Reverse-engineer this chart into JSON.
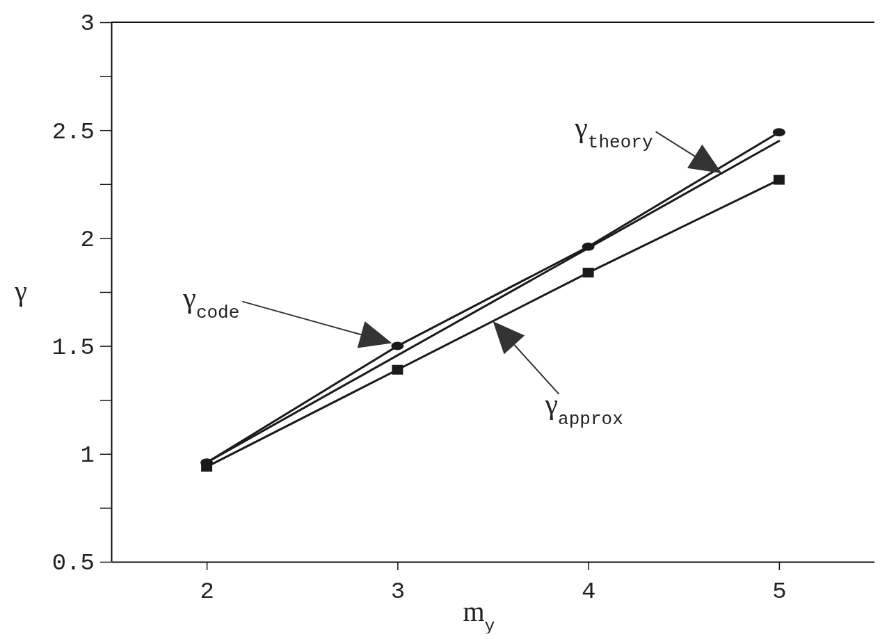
{
  "chart_data": {
    "type": "line",
    "xlabel": "m$_{y}$",
    "ylabel": "γ",
    "xlim": [
      1.5,
      5.5
    ],
    "xticks": [
      2,
      3,
      4,
      5
    ],
    "ylim": [
      0.5,
      3
    ],
    "yticks": [
      0.5,
      {
        "value": 0.75,
        "label": null
      },
      1,
      {
        "value": 1.25,
        "label": null
      },
      1.5,
      {
        "value": 1.75,
        "label": null
      },
      2,
      {
        "value": 2.25,
        "label": null
      },
      2.5,
      {
        "value": 2.75,
        "label": null
      },
      3
    ],
    "series": [
      {
        "color": "#1a1a1a",
        "x": [
          2,
          3,
          4,
          5
        ],
        "values": [
          0.96,
          1.5,
          1.96,
          2.49
        ],
        "marker": "circle"
      },
      {
        "color": "#1a1a1a",
        "x": [
          2,
          5
        ],
        "values": [
          0.96,
          2.45
        ],
        "marker": "none"
      },
      {
        "color": "#1a1a1a",
        "x": [
          2,
          3,
          4,
          5
        ],
        "values": [
          0.94,
          1.39,
          1.84,
          2.27
        ],
        "marker": "square"
      }
    ],
    "annotations": [
      {
        "text": "γ$_{theory}$",
        "x": 4.7,
        "y": 2.3
      },
      "γ$_{code}$",
      {
        "text": "γ$_{approx}$",
        "x": 3.5,
        "y": 1.615
      }
    ],
    "grid": false
  }
}
